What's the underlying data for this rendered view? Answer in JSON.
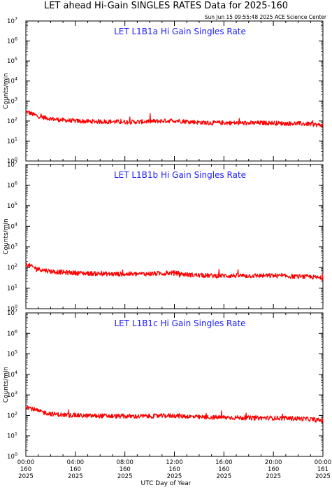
{
  "title": "LET ahead Hi-Gain SINGLES RATES Data for 2025-160",
  "timestamp": "Sun Jun 15 09:55:48 2025 ACE Science Center",
  "x_axis_title": "UTC Day of Year",
  "y_axis_title": "Counts/min",
  "x_ticks": [
    {
      "time": "00:00",
      "doy": "160",
      "year": "2025"
    },
    {
      "time": "04:00",
      "doy": "160",
      "year": "2025"
    },
    {
      "time": "08:00",
      "doy": "160",
      "year": "2025"
    },
    {
      "time": "12:00",
      "doy": "160",
      "year": "2025"
    },
    {
      "time": "16:00",
      "doy": "160",
      "year": "2025"
    },
    {
      "time": "20:00",
      "doy": "160",
      "year": "2025"
    },
    {
      "time": "00:00",
      "doy": "161",
      "year": "2025"
    }
  ],
  "y_tick_exponents": [
    "0",
    "1",
    "2",
    "3",
    "4",
    "5",
    "6",
    "7"
  ],
  "colors": {
    "line": "#ff0000",
    "panel_title": "#1a1aff"
  },
  "chart_data": [
    {
      "type": "line",
      "title": "LET L1B1a Hi Gain Singles Rate",
      "xlabel": "UTC Day of Year",
      "ylabel": "Counts/min",
      "y_scale": "log",
      "ylim": [
        1,
        10000000
      ],
      "xlim_hours": [
        0,
        24
      ],
      "series": [
        {
          "x_hours": [
            0,
            1,
            2,
            3,
            4,
            5,
            6,
            7,
            8,
            9,
            10,
            11,
            12,
            13,
            14,
            15,
            16,
            17,
            18,
            19,
            20,
            21,
            22,
            23,
            24
          ],
          "values": [
            300,
            170,
            130,
            110,
            100,
            95,
            95,
            92,
            90,
            90,
            95,
            100,
            105,
            95,
            85,
            80,
            82,
            80,
            78,
            80,
            80,
            75,
            75,
            70,
            60
          ]
        }
      ]
    },
    {
      "type": "line",
      "title": "LET L1B1b Hi Gain Singles Rate",
      "xlabel": "UTC Day of Year",
      "ylabel": "Counts/min",
      "y_scale": "log",
      "ylim": [
        1,
        10000000
      ],
      "xlim_hours": [
        0,
        24
      ],
      "series": [
        {
          "x_hours": [
            0,
            1,
            2,
            3,
            4,
            5,
            6,
            7,
            8,
            9,
            10,
            11,
            12,
            13,
            14,
            15,
            16,
            17,
            18,
            19,
            20,
            21,
            22,
            23,
            24
          ],
          "values": [
            140,
            85,
            65,
            58,
            55,
            52,
            50,
            48,
            48,
            48,
            50,
            52,
            55,
            45,
            42,
            40,
            40,
            40,
            40,
            40,
            40,
            38,
            36,
            35,
            30
          ]
        }
      ]
    },
    {
      "type": "line",
      "title": "LET L1B1c Hi Gain Singles Rate",
      "xlabel": "UTC Day of Year",
      "ylabel": "Counts/min",
      "y_scale": "log",
      "ylim": [
        1,
        10000000
      ],
      "xlim_hours": [
        0,
        24
      ],
      "series": [
        {
          "x_hours": [
            0,
            1,
            2,
            3,
            4,
            5,
            6,
            7,
            8,
            9,
            10,
            11,
            12,
            13,
            14,
            15,
            16,
            17,
            18,
            19,
            20,
            21,
            22,
            23,
            24
          ],
          "values": [
            280,
            160,
            120,
            105,
            100,
            95,
            95,
            92,
            90,
            90,
            92,
            95,
            98,
            90,
            82,
            80,
            80,
            78,
            75,
            75,
            75,
            72,
            70,
            65,
            55
          ]
        }
      ]
    }
  ]
}
